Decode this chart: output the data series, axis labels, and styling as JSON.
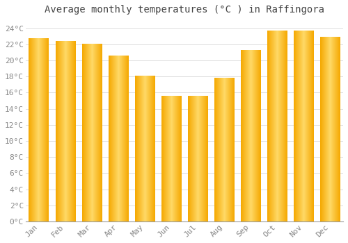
{
  "title": "Average monthly temperatures (°C ) in Raffingora",
  "months": [
    "Jan",
    "Feb",
    "Mar",
    "Apr",
    "May",
    "Jun",
    "Jul",
    "Aug",
    "Sep",
    "Oct",
    "Nov",
    "Dec"
  ],
  "values": [
    22.7,
    22.4,
    22.0,
    20.6,
    18.1,
    15.6,
    15.6,
    17.8,
    21.3,
    23.7,
    23.7,
    22.9
  ],
  "bar_color_left": "#F5A800",
  "bar_color_center": "#FFD966",
  "bar_color_right": "#F5A800",
  "background_color": "#FFFFFF",
  "grid_color": "#DDDDDD",
  "ylim": [
    0,
    25
  ],
  "yticks": [
    0,
    2,
    4,
    6,
    8,
    10,
    12,
    14,
    16,
    18,
    20,
    22,
    24
  ],
  "ytick_labels": [
    "0°C",
    "2°C",
    "4°C",
    "6°C",
    "8°C",
    "10°C",
    "12°C",
    "14°C",
    "16°C",
    "18°C",
    "20°C",
    "22°C",
    "24°C"
  ],
  "title_fontsize": 10,
  "tick_fontsize": 8,
  "tick_font_color": "#888888",
  "title_font_color": "#444444",
  "bar_width": 0.75
}
